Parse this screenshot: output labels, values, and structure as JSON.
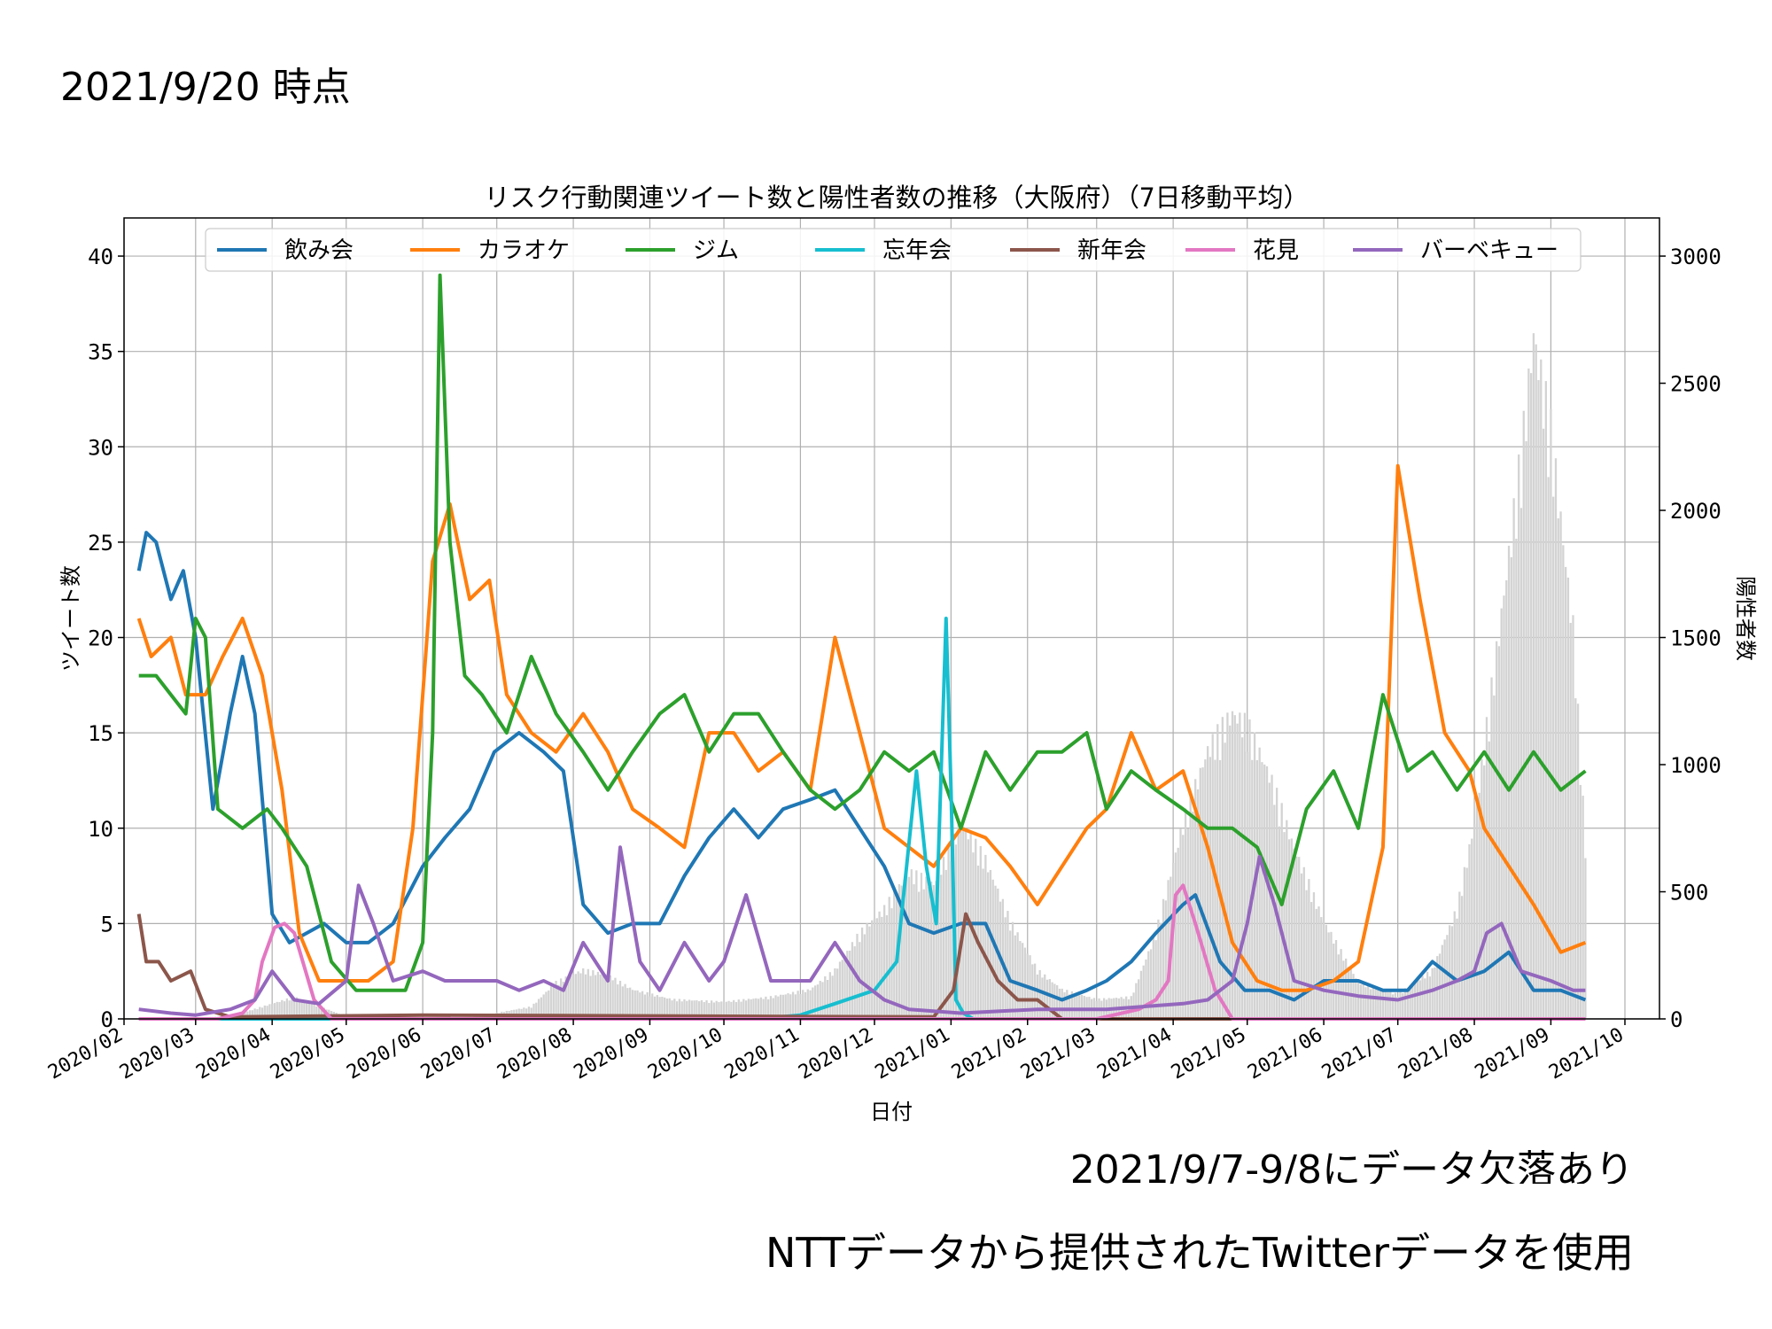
{
  "header": {
    "as_of": "2021/9/20 時点"
  },
  "footnotes": {
    "gap_note": "2021/9/7-9/8にデータ欠落あり",
    "source_note": "NTTデータから提供されたTwitterデータを使用"
  },
  "chart_data": {
    "type": "line",
    "title": "リスク行動関連ツイート数と陽性者数の推移（大阪府）（7日移動平均）",
    "xlabel": "日付",
    "ylabel": "ツイート数",
    "y2label": "陽性者数",
    "grid": true,
    "legend": "top",
    "xlim": [
      "2020-02-01",
      "2021-10-15"
    ],
    "ylim": [
      0,
      42
    ],
    "y2lim": [
      0,
      3150
    ],
    "x_ticks": [
      "2020-02-01",
      "2020-03-01",
      "2020-04-01",
      "2020-05-01",
      "2020-06-01",
      "2020-07-01",
      "2020-08-01",
      "2020-09-01",
      "2020-10-01",
      "2020-11-01",
      "2020-12-01",
      "2021-01-01",
      "2021-02-01",
      "2021-03-01",
      "2021-04-01",
      "2021-05-01",
      "2021-06-01",
      "2021-07-01",
      "2021-08-01",
      "2021-09-01",
      "2021-10-01"
    ],
    "x_tick_labels": [
      "2020/02",
      "2020/03",
      "2020/04",
      "2020/05",
      "2020/06",
      "2020/07",
      "2020/08",
      "2020/09",
      "2020/10",
      "2020/11",
      "2020/12",
      "2021/01",
      "2021/02",
      "2021/03",
      "2021/04",
      "2021/05",
      "2021/06",
      "2021/07",
      "2021/08",
      "2021/09",
      "2021/10"
    ],
    "y_ticks": [
      0,
      5,
      10,
      15,
      20,
      25,
      30,
      35,
      40
    ],
    "y2_ticks": [
      0,
      500,
      1000,
      1500,
      2000,
      2500,
      3000
    ],
    "series": [
      {
        "name": "飲み会",
        "color": "#1f77b4",
        "x": [
          "2020-02-07",
          "2020-02-10",
          "2020-02-14",
          "2020-02-20",
          "2020-02-25",
          "2020-03-01",
          "2020-03-08",
          "2020-03-15",
          "2020-03-20",
          "2020-03-25",
          "2020-04-01",
          "2020-04-08",
          "2020-04-15",
          "2020-04-22",
          "2020-05-01",
          "2020-05-10",
          "2020-05-20",
          "2020-06-01",
          "2020-06-10",
          "2020-06-20",
          "2020-06-30",
          "2020-07-10",
          "2020-07-20",
          "2020-07-28",
          "2020-08-05",
          "2020-08-15",
          "2020-08-25",
          "2020-09-05",
          "2020-09-15",
          "2020-09-25",
          "2020-10-05",
          "2020-10-15",
          "2020-10-25",
          "2020-11-05",
          "2020-11-15",
          "2020-11-25",
          "2020-12-05",
          "2020-12-15",
          "2020-12-25",
          "2021-01-05",
          "2021-01-15",
          "2021-01-25",
          "2021-02-05",
          "2021-02-15",
          "2021-02-25",
          "2021-03-05",
          "2021-03-15",
          "2021-03-25",
          "2021-04-05",
          "2021-04-10",
          "2021-04-20",
          "2021-04-30",
          "2021-05-10",
          "2021-05-20",
          "2021-06-01",
          "2021-06-15",
          "2021-06-25",
          "2021-07-05",
          "2021-07-15",
          "2021-07-25",
          "2021-08-05",
          "2021-08-15",
          "2021-08-25",
          "2021-09-05",
          "2021-09-15"
        ],
        "values": [
          23.5,
          25.5,
          25,
          22,
          23.5,
          20,
          11,
          16,
          19,
          16,
          5.5,
          4,
          4.5,
          5,
          4,
          4,
          5,
          8,
          9.5,
          11,
          14,
          15,
          14,
          13,
          6,
          4.5,
          5,
          5,
          7.5,
          9.5,
          11,
          9.5,
          11,
          11.5,
          12,
          10,
          8,
          5,
          4.5,
          5,
          5,
          2,
          1.5,
          1,
          1.5,
          2,
          3,
          4.5,
          6,
          6.5,
          3,
          1.5,
          1.5,
          1,
          2,
          2,
          1.5,
          1.5,
          3,
          2,
          2.5,
          3.5,
          1.5,
          1.5,
          1
        ]
      },
      {
        "name": "カラオケ",
        "color": "#ff7f0e",
        "x": [
          "2020-02-07",
          "2020-02-12",
          "2020-02-20",
          "2020-02-26",
          "2020-03-05",
          "2020-03-12",
          "2020-03-20",
          "2020-03-28",
          "2020-04-05",
          "2020-04-12",
          "2020-04-20",
          "2020-05-01",
          "2020-05-10",
          "2020-05-20",
          "2020-05-28",
          "2020-06-05",
          "2020-06-12",
          "2020-06-20",
          "2020-06-28",
          "2020-07-05",
          "2020-07-15",
          "2020-07-25",
          "2020-08-05",
          "2020-08-15",
          "2020-08-25",
          "2020-09-05",
          "2020-09-15",
          "2020-09-25",
          "2020-10-05",
          "2020-10-15",
          "2020-10-25",
          "2020-11-05",
          "2020-11-15",
          "2020-11-25",
          "2020-12-05",
          "2020-12-15",
          "2020-12-25",
          "2021-01-05",
          "2021-01-15",
          "2021-01-25",
          "2021-02-05",
          "2021-02-15",
          "2021-02-25",
          "2021-03-05",
          "2021-03-15",
          "2021-03-25",
          "2021-04-05",
          "2021-04-15",
          "2021-04-25",
          "2021-05-05",
          "2021-05-15",
          "2021-05-25",
          "2021-06-05",
          "2021-06-15",
          "2021-06-25",
          "2021-07-01",
          "2021-07-10",
          "2021-07-20",
          "2021-07-30",
          "2021-08-05",
          "2021-08-15",
          "2021-08-25",
          "2021-09-05",
          "2021-09-15"
        ],
        "values": [
          21,
          19,
          20,
          17,
          17,
          19,
          21,
          18,
          12,
          4.5,
          2,
          2,
          2,
          3,
          10,
          24,
          27,
          22,
          23,
          17,
          15,
          14,
          16,
          14,
          11,
          10,
          9,
          15,
          15,
          13,
          14,
          12,
          20,
          15,
          10,
          9,
          8,
          10,
          9.5,
          8,
          6,
          8,
          10,
          11,
          15,
          12,
          13,
          9,
          4,
          2,
          1.5,
          1.5,
          2,
          3,
          9,
          29,
          22,
          15,
          13,
          10,
          8,
          6,
          3.5,
          4
        ]
      },
      {
        "name": "ジム",
        "color": "#2ca02c",
        "x": [
          "2020-02-07",
          "2020-02-14",
          "2020-02-20",
          "2020-02-26",
          "2020-03-01",
          "2020-03-05",
          "2020-03-10",
          "2020-03-20",
          "2020-03-30",
          "2020-04-05",
          "2020-04-15",
          "2020-04-25",
          "2020-05-05",
          "2020-05-15",
          "2020-05-25",
          "2020-06-01",
          "2020-06-05",
          "2020-06-08",
          "2020-06-12",
          "2020-06-18",
          "2020-06-25",
          "2020-07-05",
          "2020-07-15",
          "2020-07-25",
          "2020-08-05",
          "2020-08-15",
          "2020-08-25",
          "2020-09-05",
          "2020-09-15",
          "2020-09-25",
          "2020-10-05",
          "2020-10-15",
          "2020-10-25",
          "2020-11-05",
          "2020-11-15",
          "2020-11-25",
          "2020-12-05",
          "2020-12-15",
          "2020-12-25",
          "2021-01-05",
          "2021-01-15",
          "2021-01-25",
          "2021-02-05",
          "2021-02-15",
          "2021-02-25",
          "2021-03-05",
          "2021-03-15",
          "2021-03-25",
          "2021-04-05",
          "2021-04-15",
          "2021-04-25",
          "2021-05-05",
          "2021-05-15",
          "2021-05-25",
          "2021-06-05",
          "2021-06-15",
          "2021-06-25",
          "2021-07-05",
          "2021-07-15",
          "2021-07-25",
          "2021-08-05",
          "2021-08-15",
          "2021-08-25",
          "2021-09-05",
          "2021-09-15"
        ],
        "values": [
          18,
          18,
          17,
          16,
          21,
          20,
          11,
          10,
          11,
          10,
          8,
          3,
          1.5,
          1.5,
          1.5,
          4,
          15,
          39,
          25,
          18,
          17,
          15,
          19,
          16,
          14,
          12,
          14,
          16,
          17,
          14,
          16,
          16,
          14,
          12,
          11,
          12,
          14,
          13,
          14,
          10,
          14,
          12,
          14,
          14,
          15,
          11,
          13,
          12,
          11,
          10,
          10,
          9,
          6,
          11,
          13,
          10,
          17,
          13,
          14,
          12,
          14,
          12,
          14,
          12,
          13
        ]
      },
      {
        "name": "忘年会",
        "color": "#17becf",
        "x": [
          "2020-02-07",
          "2020-10-15",
          "2020-11-01",
          "2020-11-15",
          "2020-12-01",
          "2020-12-10",
          "2020-12-18",
          "2020-12-22",
          "2020-12-26",
          "2020-12-30",
          "2021-01-01",
          "2021-01-03",
          "2021-01-06",
          "2021-01-10",
          "2021-09-15"
        ],
        "values": [
          0,
          0,
          0.2,
          0.8,
          1.5,
          3,
          13,
          8,
          5,
          21,
          12,
          1,
          0.3,
          0,
          0
        ]
      },
      {
        "name": "新年会",
        "color": "#8c564b",
        "x": [
          "2020-02-07",
          "2020-02-10",
          "2020-02-15",
          "2020-02-20",
          "2020-02-28",
          "2020-03-05",
          "2020-03-15",
          "2020-06-01",
          "2020-12-25",
          "2021-01-02",
          "2021-01-07",
          "2021-01-12",
          "2021-01-20",
          "2021-01-28",
          "2021-02-05",
          "2021-02-15",
          "2021-09-15"
        ],
        "values": [
          5.5,
          3,
          3,
          2,
          2.5,
          0.5,
          0.1,
          0.2,
          0.1,
          1.5,
          5.5,
          4,
          2,
          1,
          1,
          0,
          0
        ]
      },
      {
        "name": "花見",
        "color": "#e377c2",
        "x": [
          "2020-02-07",
          "2020-03-10",
          "2020-03-20",
          "2020-03-25",
          "2020-03-28",
          "2020-04-02",
          "2020-04-06",
          "2020-04-10",
          "2020-04-18",
          "2020-04-25",
          "2021-03-01",
          "2021-03-18",
          "2021-03-25",
          "2021-03-30",
          "2021-04-02",
          "2021-04-05",
          "2021-04-10",
          "2021-04-18",
          "2021-04-25",
          "2021-09-15"
        ],
        "values": [
          0,
          0,
          0.3,
          1,
          3,
          4.8,
          5,
          4.5,
          1,
          0,
          0,
          0.5,
          1,
          2,
          6.5,
          7,
          5,
          1.5,
          0,
          0
        ]
      },
      {
        "name": "バーベキュー",
        "color": "#9467bd",
        "x": [
          "2020-02-07",
          "2020-02-20",
          "2020-03-01",
          "2020-03-15",
          "2020-03-25",
          "2020-04-01",
          "2020-04-10",
          "2020-04-20",
          "2020-05-01",
          "2020-05-06",
          "2020-05-12",
          "2020-05-20",
          "2020-06-01",
          "2020-06-10",
          "2020-06-20",
          "2020-07-01",
          "2020-07-10",
          "2020-07-20",
          "2020-07-28",
          "2020-08-05",
          "2020-08-15",
          "2020-08-20",
          "2020-08-28",
          "2020-09-05",
          "2020-09-15",
          "2020-09-25",
          "2020-10-01",
          "2020-10-10",
          "2020-10-20",
          "2020-10-28",
          "2020-11-05",
          "2020-11-15",
          "2020-11-25",
          "2020-12-05",
          "2020-12-15",
          "2021-01-05",
          "2021-02-05",
          "2021-03-05",
          "2021-04-05",
          "2021-04-15",
          "2021-04-25",
          "2021-05-01",
          "2021-05-06",
          "2021-05-12",
          "2021-05-20",
          "2021-06-01",
          "2021-06-15",
          "2021-07-01",
          "2021-07-15",
          "2021-07-25",
          "2021-08-01",
          "2021-08-06",
          "2021-08-12",
          "2021-08-20",
          "2021-09-01",
          "2021-09-10",
          "2021-09-15"
        ],
        "values": [
          0.5,
          0.3,
          0.2,
          0.5,
          1,
          2.5,
          1,
          0.8,
          2,
          7,
          5,
          2,
          2.5,
          2,
          2,
          2,
          1.5,
          2,
          1.5,
          4,
          2,
          9,
          3,
          1.5,
          4,
          2,
          3,
          6.5,
          2,
          2,
          2,
          4,
          2,
          1,
          0.5,
          0.3,
          0.5,
          0.5,
          0.8,
          1,
          2,
          5,
          8.5,
          6,
          2,
          1.5,
          1.2,
          1,
          1.5,
          2,
          2.5,
          4.5,
          5,
          2.5,
          2,
          1.5,
          1.5
        ]
      }
    ],
    "bars": {
      "name": "陽性者数",
      "color": "#d3d3d3",
      "x": [
        "2020-02-07",
        "2020-03-15",
        "2020-04-10",
        "2020-05-01",
        "2020-06-20",
        "2020-07-15",
        "2020-07-25",
        "2020-08-05",
        "2020-08-15",
        "2020-08-25",
        "2020-09-10",
        "2020-10-01",
        "2020-10-20",
        "2020-11-05",
        "2020-11-15",
        "2020-11-25",
        "2020-12-05",
        "2020-12-15",
        "2020-12-25",
        "2021-01-05",
        "2021-01-15",
        "2021-01-25",
        "2021-02-05",
        "2021-02-15",
        "2021-03-01",
        "2021-03-15",
        "2021-03-25",
        "2021-04-05",
        "2021-04-15",
        "2021-04-25",
        "2021-05-01",
        "2021-05-10",
        "2021-05-20",
        "2021-06-01",
        "2021-06-15",
        "2021-07-01",
        "2021-07-15",
        "2021-07-25",
        "2021-08-01",
        "2021-08-10",
        "2021-08-20",
        "2021-08-25",
        "2021-09-01",
        "2021-09-10",
        "2021-09-15"
      ],
      "values": [
        0,
        10,
        90,
        10,
        5,
        50,
        150,
        200,
        180,
        120,
        80,
        70,
        90,
        120,
        200,
        350,
        450,
        600,
        550,
        800,
        650,
        400,
        200,
        120,
        80,
        90,
        350,
        800,
        1100,
        1250,
        1200,
        1000,
        700,
        400,
        150,
        100,
        200,
        450,
        800,
        1500,
        2300,
        2800,
        2400,
        1600,
        700
      ]
    }
  }
}
